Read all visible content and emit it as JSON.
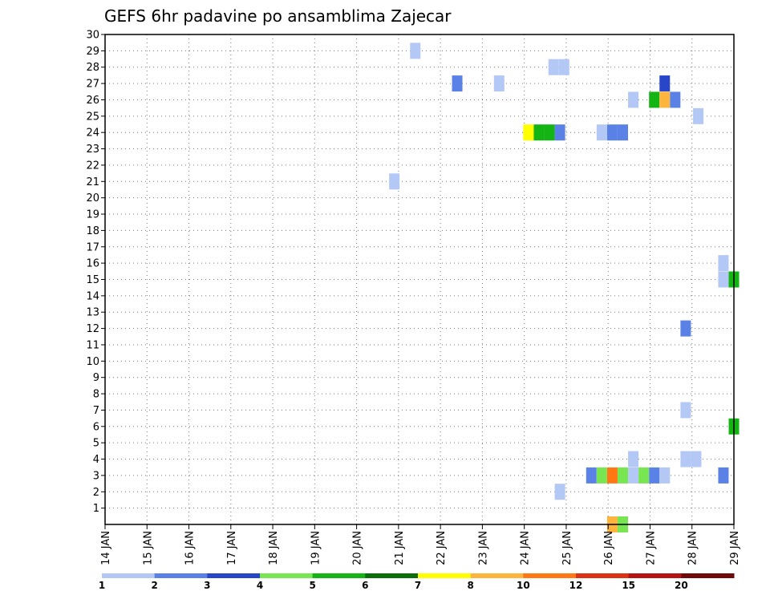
{
  "chart_data": {
    "type": "heatmap",
    "title": "GEFS 6hr padavine po ansamblima Zajecar",
    "x_tick_labels": [
      "14 JAN",
      "15 JAN",
      "16 JAN",
      "17 JAN",
      "18 JAN",
      "19 JAN",
      "20 JAN",
      "21 JAN",
      "22 JAN",
      "23 JAN",
      "24 JAN",
      "25 JAN",
      "26 JAN",
      "27 JAN",
      "28 JAN",
      "29 JAN"
    ],
    "y_tick_labels": [
      "1",
      "2",
      "3",
      "4",
      "5",
      "6",
      "7",
      "8",
      "9",
      "10",
      "11",
      "12",
      "13",
      "14",
      "15",
      "16",
      "17",
      "18",
      "19",
      "20",
      "21",
      "22",
      "23",
      "24",
      "25",
      "26",
      "27",
      "28",
      "29",
      "30"
    ],
    "xlim_days": [
      14,
      29
    ],
    "ylim": [
      0,
      30
    ],
    "grid": true,
    "colorbar": {
      "labels": [
        "1",
        "2",
        "3",
        "4",
        "5",
        "6",
        "7",
        "8",
        "10",
        "12",
        "15",
        "20"
      ],
      "colors": [
        "#b4c8f5",
        "#5a82e6",
        "#2846c8",
        "#78e650",
        "#14b414",
        "#0a6e0a",
        "#ffff00",
        "#ffb43c",
        "#ff7814",
        "#dc3214",
        "#b41414",
        "#6e0a0a"
      ]
    },
    "cells_note": "cell = [day (Jan), member row, category index 0-11]",
    "cells": [
      [
        21.4,
        29,
        0
      ],
      [
        24.7,
        28,
        0
      ],
      [
        24.95,
        28,
        0
      ],
      [
        22.4,
        27,
        1
      ],
      [
        23.4,
        27,
        0
      ],
      [
        27.35,
        27,
        2
      ],
      [
        26.6,
        26,
        0
      ],
      [
        27.1,
        26,
        4
      ],
      [
        27.35,
        26,
        7
      ],
      [
        27.6,
        26,
        1
      ],
      [
        28.15,
        25,
        0
      ],
      [
        24.1,
        24,
        6
      ],
      [
        24.35,
        24,
        4
      ],
      [
        24.6,
        24,
        4
      ],
      [
        24.85,
        24,
        1
      ],
      [
        25.85,
        24,
        0
      ],
      [
        26.1,
        24,
        1
      ],
      [
        26.35,
        24,
        1
      ],
      [
        20.9,
        21,
        0
      ],
      [
        28.75,
        16,
        0
      ],
      [
        28.75,
        15,
        0
      ],
      [
        29.0,
        15,
        4
      ],
      [
        27.85,
        12,
        1
      ],
      [
        27.85,
        7,
        0
      ],
      [
        29.0,
        6,
        4
      ],
      [
        26.6,
        4,
        0
      ],
      [
        27.85,
        4,
        0
      ],
      [
        28.1,
        4,
        0
      ],
      [
        25.6,
        3,
        1
      ],
      [
        25.85,
        3,
        3
      ],
      [
        26.1,
        3,
        8
      ],
      [
        26.35,
        3,
        3
      ],
      [
        26.6,
        3,
        0
      ],
      [
        26.85,
        3,
        3
      ],
      [
        27.1,
        3,
        1
      ],
      [
        27.35,
        3,
        0
      ],
      [
        28.75,
        3,
        1
      ],
      [
        24.85,
        2,
        0
      ],
      [
        26.1,
        0,
        7
      ],
      [
        26.35,
        0,
        3
      ]
    ]
  }
}
